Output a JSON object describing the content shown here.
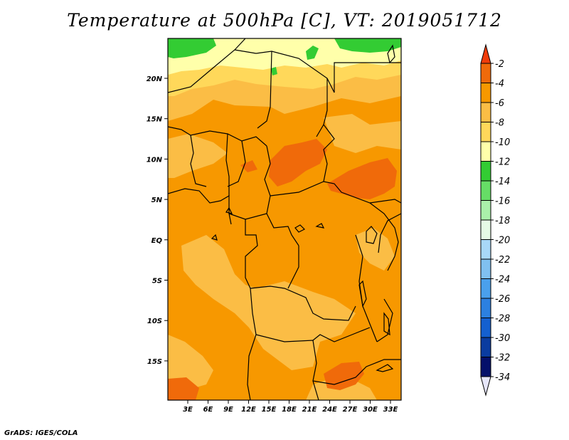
{
  "title": "Temperature at 500hPa [C], VT: 2019051712",
  "credit": "GrADS: IGES/COLA",
  "map": {
    "lat_labels": [
      "20N",
      "15N",
      "10N",
      "5N",
      "EQ",
      "5S",
      "10S",
      "15S"
    ],
    "lon_labels": [
      "3E",
      "6E",
      "9E",
      "12E",
      "15E",
      "18E",
      "21E",
      "24E",
      "27E",
      "30E",
      "33E"
    ],
    "zones": {
      "green": "#33cc33",
      "yellow": "#ffffaa",
      "lightorange": "#ffd85a",
      "peach": "#fbbd45",
      "orange": "#f79800",
      "deeporange": "#f06a0a"
    }
  },
  "colorbar": {
    "levels": [
      "-2",
      "-4",
      "-6",
      "-8",
      "-10",
      "-12",
      "-14",
      "-16",
      "-18",
      "-20",
      "-22",
      "-24",
      "-26",
      "-28",
      "-30",
      "-32",
      "-34"
    ],
    "colors": [
      "#f03c0a",
      "#f06a0a",
      "#f79800",
      "#fbbd45",
      "#ffd85a",
      "#ffffaa",
      "#33cc33",
      "#66dd66",
      "#aaf0aa",
      "#e6fae6",
      "#a8d8f8",
      "#80c0f0",
      "#4aa0ec",
      "#2c80e0",
      "#1460d0",
      "#0a3ca0",
      "#04106a",
      "#e6e6fa"
    ]
  }
}
